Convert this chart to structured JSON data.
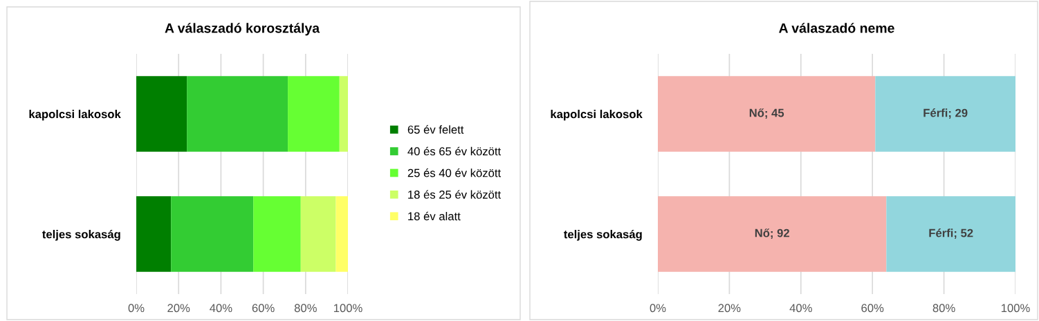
{
  "chart_data": [
    {
      "type": "bar",
      "orientation": "horizontal",
      "stacked": true,
      "title": "A válaszadó korosztálya",
      "categories": [
        "kapolcsi lakosok",
        "teljes sokaság"
      ],
      "xlim": [
        0,
        100
      ],
      "xticks": [
        {
          "value": 0,
          "label": "0%"
        },
        {
          "value": 20,
          "label": "20%"
        },
        {
          "value": 40,
          "label": "40%"
        },
        {
          "value": 60,
          "label": "60%"
        },
        {
          "value": 80,
          "label": "80%"
        },
        {
          "value": 100,
          "label": "100%"
        }
      ],
      "grid": "x",
      "legend": "right",
      "series": [
        {
          "name": "65 év felett",
          "color": "#007f00",
          "values": [
            23.9,
            16.4
          ]
        },
        {
          "name": "40 és 65 év között",
          "color": "#33cc33",
          "values": [
            47.7,
            38.9
          ]
        },
        {
          "name": "25 és 40 év között",
          "color": "#66ff33",
          "values": [
            24.4,
            22.4
          ]
        },
        {
          "name": "18 és 25 év között",
          "color": "#ccff66",
          "values": [
            4.0,
            16.6
          ]
        },
        {
          "name": "18 év alatt",
          "color": "#ffff66",
          "values": [
            0,
            5.7
          ]
        }
      ]
    },
    {
      "type": "bar",
      "orientation": "horizontal",
      "stacked": true,
      "title": "A válaszadó neme",
      "categories": [
        "kapolcsi lakosok",
        "teljes sokaság"
      ],
      "xlim": [
        0,
        100
      ],
      "xticks": [
        {
          "value": 0,
          "label": "0%"
        },
        {
          "value": 20,
          "label": "20%"
        },
        {
          "value": 40,
          "label": "40%"
        },
        {
          "value": 60,
          "label": "60%"
        },
        {
          "value": 80,
          "label": "80%"
        },
        {
          "value": 100,
          "label": "100%"
        }
      ],
      "grid": "x",
      "series": [
        {
          "color": "#f5b3ae",
          "values": [
            60.8,
            63.9
          ]
        },
        {
          "color": "#92d6dd",
          "values": [
            39.2,
            36.1
          ]
        }
      ],
      "annotations": [
        "Nő; 45",
        "Férfi; 29",
        "Nő; 92",
        "Férfi; 52"
      ]
    }
  ]
}
